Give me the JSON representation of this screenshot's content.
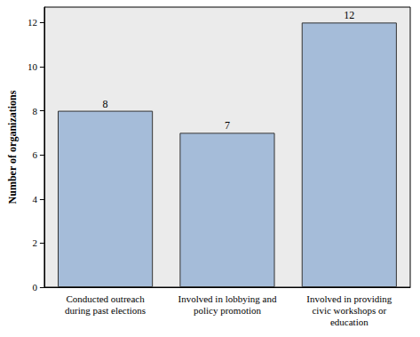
{
  "chart_data": {
    "type": "bar",
    "categories": [
      "Conducted outreach\nduring past elections",
      "Involved in lobbying and\npolicy promotion",
      "Involved in providing\ncivic workshops or\neducation"
    ],
    "values": [
      8,
      7,
      12
    ],
    "color": "#a5bcd9",
    "ylabel": "Number of organizations",
    "ylim": [
      0,
      12.7
    ],
    "yticks": [
      0,
      2,
      4,
      6,
      8,
      10,
      12
    ],
    "grid": false,
    "data_labels": true
  }
}
